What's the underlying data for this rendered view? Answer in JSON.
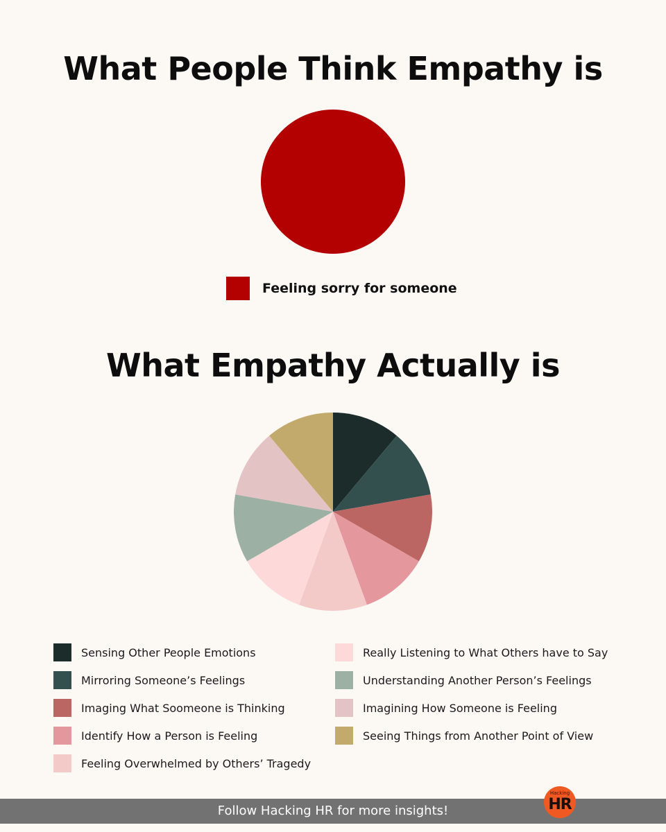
{
  "chart_data": [
    {
      "type": "pie",
      "title": "What People Think Empathy is",
      "categories": [
        "Feeling sorry for someone"
      ],
      "values": [
        100
      ],
      "colors": [
        "#b30000"
      ],
      "legend": "bottom"
    },
    {
      "type": "pie",
      "title": "What Empathy Actually is",
      "categories": [
        "Sensing Other People Emotions",
        "Mirroring Someone’s Feelings",
        "Imaging What Soomeone is Thinking",
        "Identify How a Person is Feeling",
        "Feeling Overwhelmed by Others’ Tragedy",
        "Really Listening to What Others have to Say",
        "Understanding Another Person’s Feelings",
        "Imagining How Someone is Feeling",
        "Seeing Things from Another Point of View"
      ],
      "values": [
        1,
        1,
        1,
        1,
        1,
        1,
        1,
        1,
        1
      ],
      "colors": [
        "#1b2c2a",
        "#33504f",
        "#bc6663",
        "#e4979d",
        "#f4cac9",
        "#fdd9d9",
        "#9cb0a3",
        "#e3c3c3",
        "#c1aa6c"
      ],
      "legend": "bottom"
    }
  ],
  "footer": {
    "text": "Follow Hacking HR for more insights!",
    "logo_small": "Hacking",
    "logo_big": "HR",
    "bar_color": "#727272",
    "logo_color": "#f05a22"
  }
}
